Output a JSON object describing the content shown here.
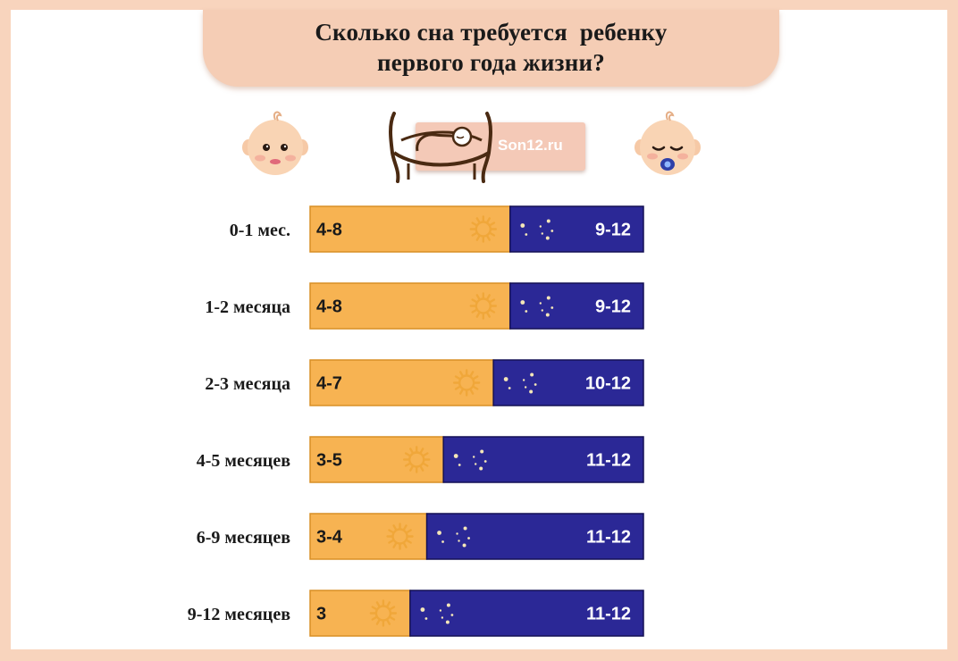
{
  "title": {
    "line1": "Сколько сна требуется  ребенку",
    "line2": "первого года жизни?"
  },
  "logo": {
    "text": "Son12.ru"
  },
  "colors": {
    "page_border": "#f8d4bd",
    "banner": "#f5cdb5",
    "day_fill": "#f7b352",
    "night_fill": "#2b2896",
    "day_stroke": "#d88f25",
    "night_stroke": "#141055",
    "sun": "#f0a73a",
    "moon": "#f5e7b8"
  },
  "icons": {
    "day": "sun-icon",
    "night": "moon-stars-icon",
    "left_face": "awake-baby-face-icon",
    "right_face": "sleeping-baby-face-icon",
    "logo": "crib-logo-icon"
  },
  "chart_data": {
    "type": "bar",
    "orientation": "horizontal",
    "stacked": true,
    "categories": [
      "0-1 мес.",
      "1-2 месяца",
      "2-3 месяца",
      "4-5 месяцев",
      "6-9 месяцев",
      "9-12 месяцев"
    ],
    "series": [
      {
        "key": "day",
        "labels": [
          "4-8",
          "4-8",
          "4-7",
          "3-5",
          "3-4",
          "3"
        ],
        "values": [
          6,
          6,
          5.5,
          4,
          3.5,
          3
        ],
        "color": "#f7b352",
        "icon": "sun-icon"
      },
      {
        "key": "night",
        "labels": [
          "9-12",
          "9-12",
          "10-12",
          "11-12",
          "11-12",
          "11-12"
        ],
        "values": [
          4,
          4,
          4.5,
          6,
          6.5,
          7
        ],
        "color": "#2b2896",
        "icon": "moon-stars-icon"
      }
    ],
    "total": 10,
    "title": "Сколько сна требуется  ребенку первого года жизни?",
    "xlabel": "",
    "ylabel": "",
    "legend": "none",
    "grid": false
  }
}
